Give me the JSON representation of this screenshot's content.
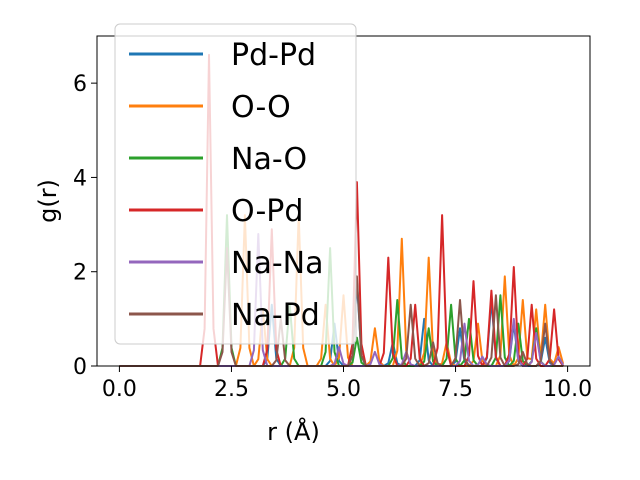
{
  "chart_data": {
    "type": "line",
    "xlabel": "r (Å)",
    "ylabel": "g(r)",
    "xlim": [
      -0.5,
      10.5
    ],
    "ylim": [
      0,
      7
    ],
    "xticks": [
      "0.0",
      "2.5",
      "5.0",
      "7.5",
      "10.0"
    ],
    "xtick_values": [
      0,
      2.5,
      5,
      7.5,
      10
    ],
    "yticks": [
      "0",
      "2",
      "4",
      "6"
    ],
    "ytick_values": [
      0,
      2,
      4,
      6
    ],
    "grid": false,
    "legend_position": "top-left",
    "series": [
      {
        "name": "Pd-Pd",
        "color": "#1f77b4",
        "peaks": [
          [
            3.4,
            1.3
          ],
          [
            4.8,
            0.9
          ],
          [
            5.3,
            1.8
          ],
          [
            6.1,
            0.5
          ],
          [
            6.8,
            1.0
          ],
          [
            7.6,
            0.8
          ],
          [
            8.3,
            1.4
          ],
          [
            8.8,
            0.9
          ],
          [
            9.5,
            0.6
          ]
        ]
      },
      {
        "name": "O-O",
        "color": "#ff7f0e",
        "peaks": [
          [
            2.8,
            3.2
          ],
          [
            3.2,
            1.2
          ],
          [
            4.0,
            3.2
          ],
          [
            4.6,
            1.3
          ],
          [
            5.0,
            1.5
          ],
          [
            5.7,
            0.8
          ],
          [
            6.3,
            2.7
          ],
          [
            6.9,
            2.3
          ],
          [
            7.3,
            0.5
          ],
          [
            8.0,
            0.9
          ],
          [
            8.6,
            1.9
          ],
          [
            9.0,
            1.4
          ],
          [
            9.3,
            1.2
          ],
          [
            9.5,
            1.3
          ],
          [
            9.8,
            0.4
          ]
        ]
      },
      {
        "name": "Na-O",
        "color": "#2ca02c",
        "peaks": [
          [
            2.4,
            3.2
          ],
          [
            3.8,
            1.3
          ],
          [
            4.7,
            2.5
          ],
          [
            5.3,
            0.6
          ],
          [
            6.2,
            1.4
          ],
          [
            6.9,
            0.8
          ],
          [
            7.4,
            1.3
          ],
          [
            7.8,
            1.0
          ],
          [
            8.5,
            1.5
          ],
          [
            8.9,
            0.9
          ],
          [
            9.3,
            0.8
          ]
        ]
      },
      {
        "name": "O-Pd",
        "color": "#d62728",
        "peaks": [
          [
            2.0,
            6.6
          ],
          [
            3.4,
            2.9
          ],
          [
            5.3,
            3.9
          ],
          [
            6.0,
            2.3
          ],
          [
            6.6,
            1.3
          ],
          [
            7.2,
            3.2
          ],
          [
            7.9,
            1.8
          ],
          [
            8.3,
            1.6
          ],
          [
            8.8,
            2.1
          ],
          [
            9.2,
            1.3
          ],
          [
            9.7,
            1.2
          ]
        ]
      },
      {
        "name": "Na-Na",
        "color": "#9467bd",
        "peaks": [
          [
            3.1,
            2.8
          ],
          [
            4.9,
            0.4
          ],
          [
            5.7,
            0.3
          ],
          [
            6.4,
            0.3
          ],
          [
            7.7,
            0.9
          ],
          [
            8.1,
            0.2
          ],
          [
            8.8,
            1.0
          ],
          [
            9.3,
            0.7
          ],
          [
            9.8,
            0.2
          ]
        ]
      },
      {
        "name": "Na-Pd",
        "color": "#8c564b",
        "peaks": [
          [
            2.4,
            2.5
          ],
          [
            3.6,
            1.0
          ],
          [
            5.3,
            1.9
          ],
          [
            6.5,
            1.3
          ],
          [
            7.0,
            0.5
          ],
          [
            7.6,
            1.4
          ],
          [
            8.4,
            1.5
          ],
          [
            9.0,
            0.3
          ],
          [
            9.5,
            0.9
          ]
        ]
      }
    ]
  }
}
